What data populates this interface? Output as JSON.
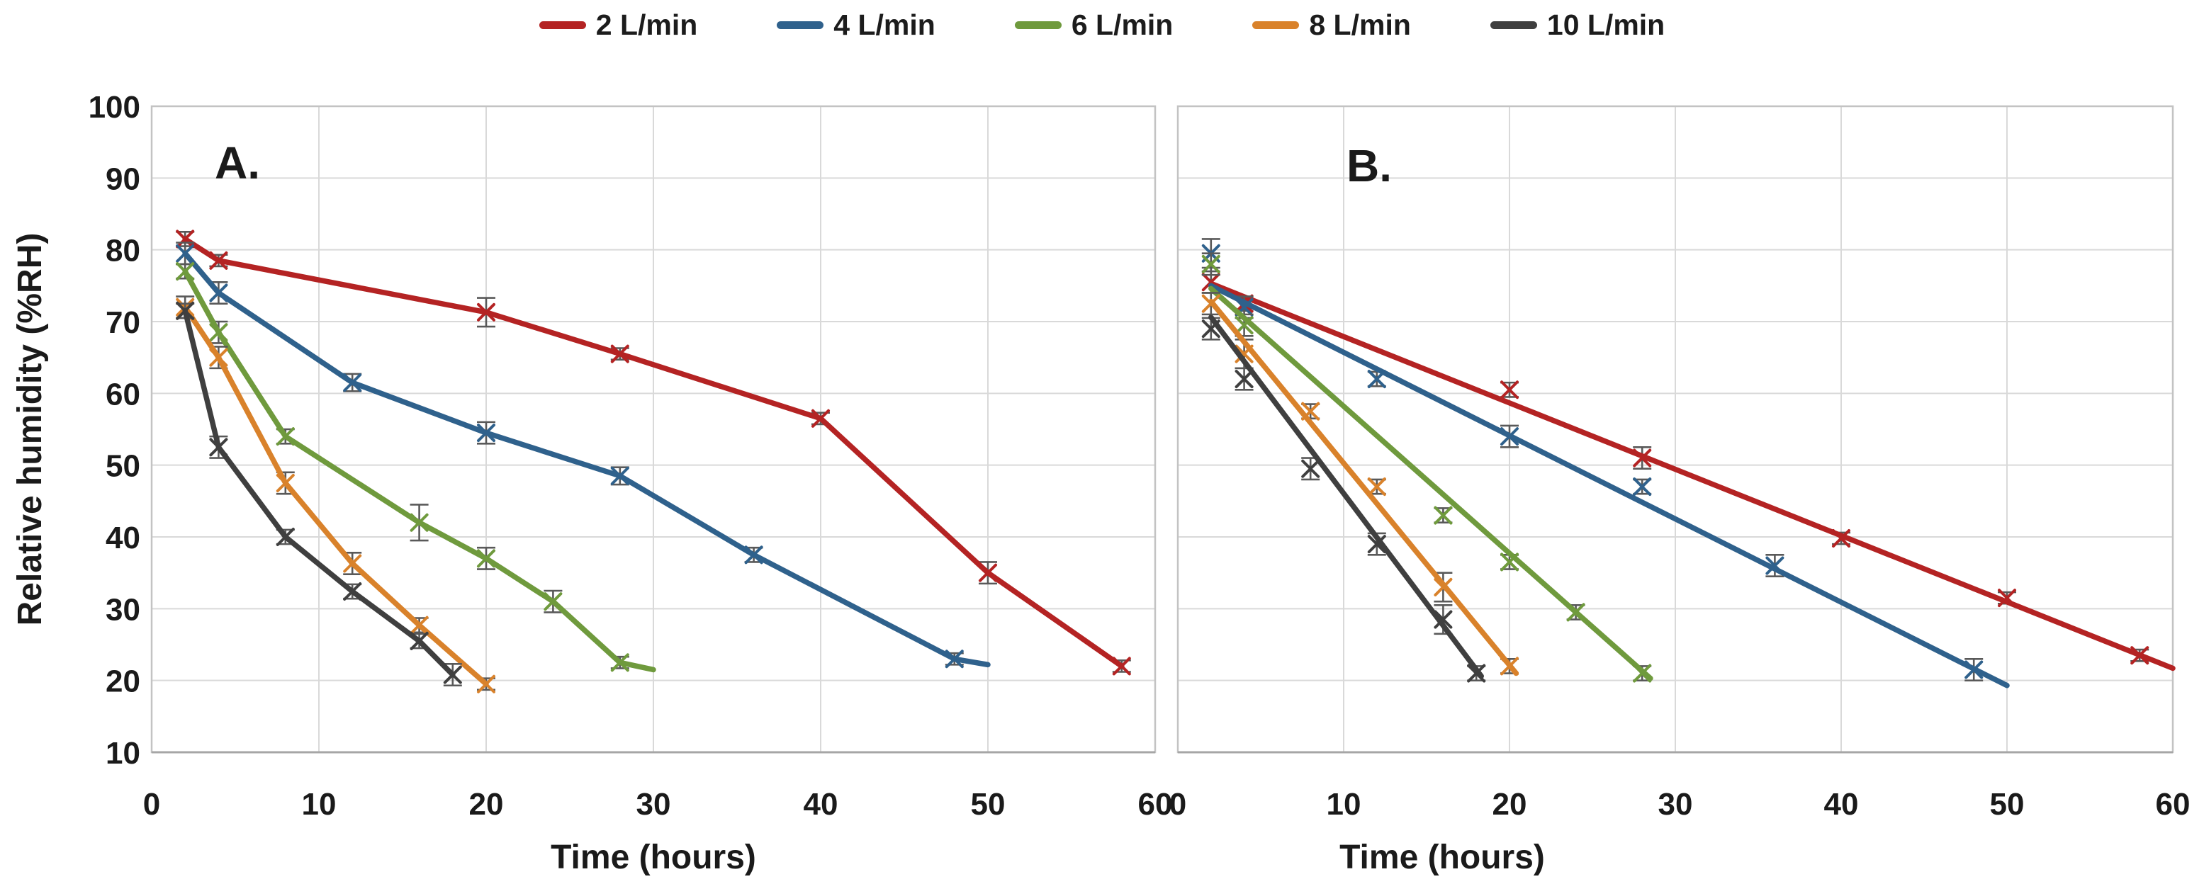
{
  "legend": {
    "items": [
      {
        "label": "2 L/min",
        "color": "#b42323"
      },
      {
        "label": "4 L/min",
        "color": "#2f618c"
      },
      {
        "label": "6 L/min",
        "color": "#6f9a3d"
      },
      {
        "label": "8 L/min",
        "color": "#d9822b"
      },
      {
        "label": "10 L/min",
        "color": "#3f3f3f"
      }
    ]
  },
  "styles": {
    "grid_color": "#d9d9d9",
    "border_color": "#c3c3c3",
    "axis_line_color": "#a6a6a6",
    "error_bar_color": "#595959",
    "text_color": "#1a1a1a"
  },
  "chart_data": [
    {
      "type": "line",
      "panel": "A.",
      "xlabel": "Time (hours)",
      "ylabel": "Relative humidity (%RH)",
      "xlim": [
        0,
        60
      ],
      "ylim": [
        10,
        100
      ],
      "xticks": [
        0,
        10,
        20,
        30,
        40,
        50,
        60
      ],
      "yticks": [
        10,
        20,
        30,
        40,
        50,
        60,
        70,
        80,
        90,
        100
      ],
      "grid": true,
      "legend_position": "top-center",
      "series": [
        {
          "name": "2 L/min",
          "color": "#b42323",
          "x": [
            2,
            4,
            20,
            28,
            40,
            50,
            58
          ],
          "y": [
            81.5,
            78.5,
            71.3,
            65.5,
            56.5,
            35,
            22
          ],
          "err": [
            1,
            0.8,
            2,
            0.8,
            0.8,
            1.5,
            0.8
          ]
        },
        {
          "name": "4 L/min",
          "color": "#2f618c",
          "x": [
            2,
            4,
            12,
            20,
            28,
            36,
            48
          ],
          "y": [
            79.5,
            74,
            61.5,
            54.5,
            48.5,
            37.5,
            23
          ],
          "err": [
            1.5,
            1.5,
            1.2,
            1.5,
            1.2,
            1,
            0.8
          ],
          "line_extend": [
            [
              50,
              22.2
            ]
          ]
        },
        {
          "name": "6 L/min",
          "color": "#6f9a3d",
          "x": [
            2,
            4,
            8,
            16,
            20,
            24,
            28
          ],
          "y": [
            77,
            68.5,
            54,
            42,
            37,
            31,
            22.5
          ],
          "err": [
            1,
            1.5,
            1,
            2.5,
            1.5,
            1.5,
            0.8
          ],
          "line_extend": [
            [
              30,
              21.5
            ]
          ]
        },
        {
          "name": "8 L/min",
          "color": "#d9822b",
          "x": [
            2,
            4,
            8,
            12,
            16,
            20
          ],
          "y": [
            72,
            65,
            47.5,
            36.3,
            27.7,
            19.5
          ],
          "err": [
            1.5,
            1.5,
            1.5,
            1.5,
            1,
            0.8
          ]
        },
        {
          "name": "10 L/min",
          "color": "#3f3f3f",
          "x": [
            2,
            4,
            8,
            12,
            16,
            18
          ],
          "y": [
            71.5,
            52.5,
            40,
            32.4,
            25.5,
            20.8
          ],
          "err": [
            1,
            1.5,
            1,
            1,
            1,
            1.5
          ]
        }
      ]
    },
    {
      "type": "line",
      "panel": "B.",
      "xlabel": "Time (hours)",
      "ylabel": "",
      "xlim": [
        0,
        60
      ],
      "ylim": [
        10,
        100
      ],
      "xticks": [
        0,
        10,
        20,
        30,
        40,
        50,
        60
      ],
      "yticks": [
        10,
        20,
        30,
        40,
        50,
        60,
        70,
        80,
        90,
        100
      ],
      "grid": true,
      "series": [
        {
          "name": "2 L/min",
          "color": "#b42323",
          "x": [
            2,
            4,
            20,
            28,
            40,
            50,
            58
          ],
          "y": [
            75.5,
            72.5,
            60.5,
            51,
            39.8,
            31.5,
            23.5
          ],
          "err": [
            1.5,
            1,
            1,
            1.5,
            0.8,
            0.8,
            0.8
          ],
          "trend": [
            [
              2,
              75.3
            ],
            [
              60,
              21.7
            ]
          ]
        },
        {
          "name": "4 L/min",
          "color": "#2f618c",
          "x": [
            2,
            4,
            12,
            20,
            28,
            36,
            48
          ],
          "y": [
            79.5,
            72,
            62,
            54,
            47,
            36,
            21.5
          ],
          "err": [
            2,
            1.5,
            1,
            1.5,
            1,
            1.5,
            1.5
          ],
          "trend": [
            [
              2,
              75.0
            ],
            [
              50,
              19.3
            ]
          ]
        },
        {
          "name": "6 L/min",
          "color": "#6f9a3d",
          "x": [
            2,
            4,
            16,
            20,
            24,
            28
          ],
          "y": [
            78,
            69.5,
            43,
            36.5,
            29.5,
            21
          ],
          "err": [
            1.5,
            1.5,
            1,
            1,
            1,
            1
          ],
          "trend": [
            [
              2,
              74.6
            ],
            [
              28.5,
              20.3
            ]
          ]
        },
        {
          "name": "8 L/min",
          "color": "#d9822b",
          "x": [
            2,
            4,
            8,
            12,
            16,
            20
          ],
          "y": [
            72.5,
            65.5,
            57.5,
            47,
            33,
            22
          ],
          "err": [
            1.5,
            2,
            1,
            1,
            2,
            1
          ],
          "trend": [
            [
              2,
              72.8
            ],
            [
              20.4,
              21.0
            ]
          ]
        },
        {
          "name": "10 L/min",
          "color": "#3f3f3f",
          "x": [
            2,
            4,
            8,
            12,
            16,
            18
          ],
          "y": [
            69,
            62,
            49.5,
            39,
            28.5,
            21
          ],
          "err": [
            1.5,
            1.5,
            1.5,
            1.5,
            2,
            1
          ],
          "trend": [
            [
              2,
              70.6
            ],
            [
              18.3,
              20.6
            ]
          ]
        }
      ]
    }
  ]
}
